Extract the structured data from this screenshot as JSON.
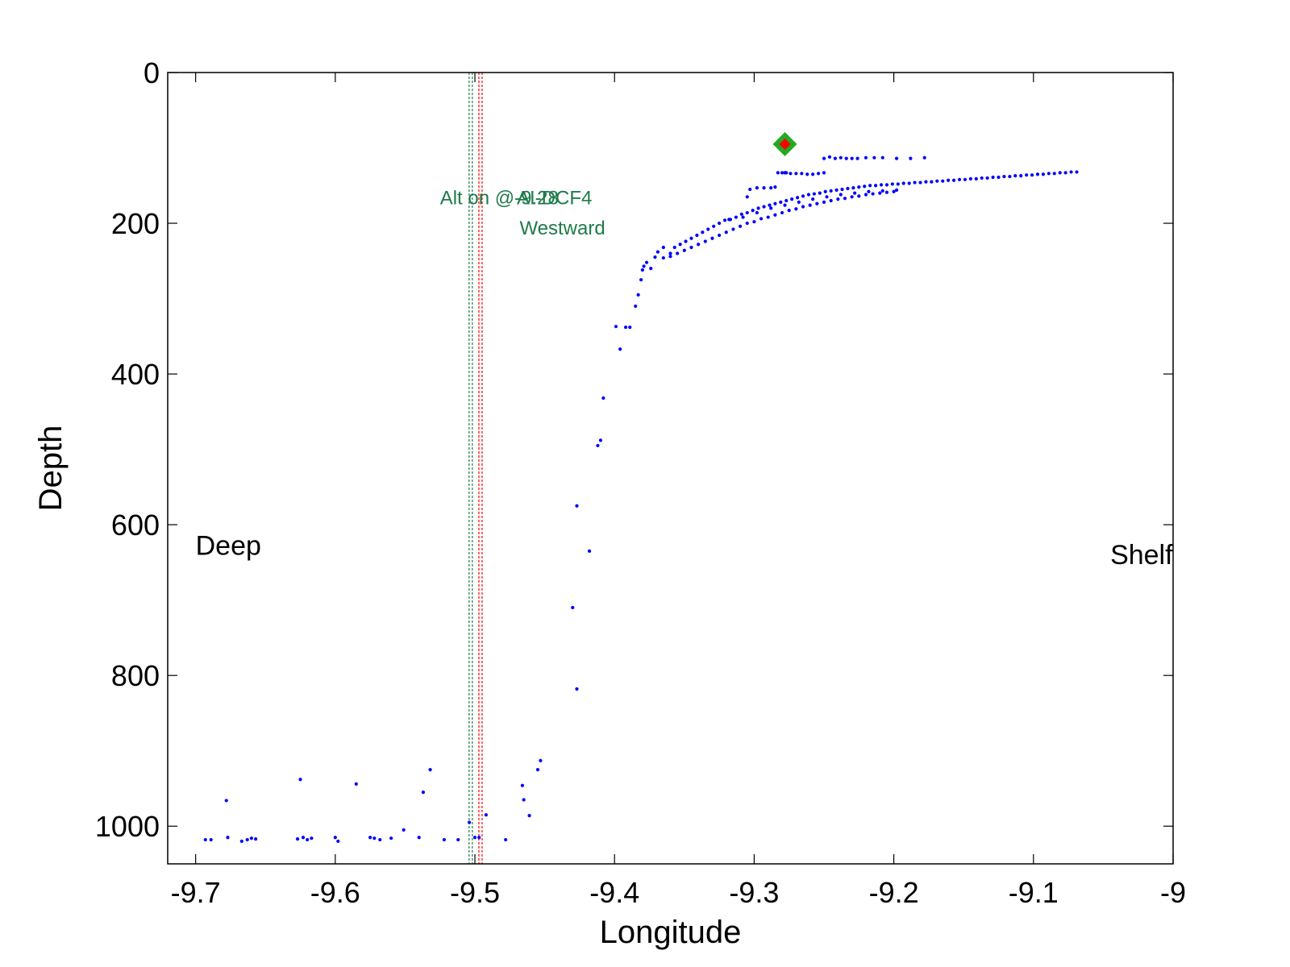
{
  "chart_data": {
    "type": "scatter",
    "xlabel": "Longitude",
    "ylabel": "Depth",
    "xlim": [
      -9.72,
      -9.0
    ],
    "ylim": [
      0,
      1050
    ],
    "y_reversed": true,
    "xticks": [
      -9.7,
      -9.6,
      -9.5,
      -9.4,
      -9.3,
      -9.2,
      -9.1,
      -9.0
    ],
    "xtick_labels": [
      "-9.7",
      "-9.6",
      "-9.5",
      "-9.4",
      "-9.3",
      "-9.2",
      "-9.1",
      "-9"
    ],
    "yticks": [
      0,
      200,
      400,
      600,
      800,
      1000
    ],
    "ytick_labels": [
      "0",
      "200",
      "400",
      "600",
      "800",
      "1000"
    ],
    "grid": false,
    "colors": {
      "points": "#0000ff",
      "line_green": "#1f7a4a",
      "line_red": "#ff0000",
      "marker_outer": "#22aa22",
      "marker_inner": "#ff0000",
      "annotation_green": "#1f7a4a"
    },
    "vertical_lines": [
      {
        "x": -9.503,
        "color": "#1f7a4a",
        "style": "dotted"
      },
      {
        "x": -9.496,
        "color": "#ff0000",
        "style": "dotted"
      }
    ],
    "highlight_marker": {
      "x": -9.278,
      "y": 95,
      "shape": "diamond"
    },
    "annotations": [
      {
        "text": "Deep",
        "x": -9.7,
        "y": 640,
        "color": "#000000"
      },
      {
        "text": "Shelf",
        "x": -9.045,
        "y": 652,
        "color": "#000000"
      },
      {
        "text": "Alt on @-9.28",
        "x": -9.525,
        "y": 175,
        "color": "#1f7a4a"
      },
      {
        "text": "AI-DCF4",
        "x": -9.47,
        "y": 175,
        "color": "#1f7a4a"
      },
      {
        "text": "Westward",
        "x": -9.468,
        "y": 215,
        "color": "#1f7a4a"
      }
    ],
    "series": [
      {
        "values": [
          [
            -9.693,
            1018
          ],
          [
            -9.689,
            1018
          ],
          [
            -9.678,
            966
          ],
          [
            -9.677,
            1015
          ],
          [
            -9.667,
            1020
          ],
          [
            -9.663,
            1018
          ],
          [
            -9.66,
            1016
          ],
          [
            -9.657,
            1017
          ],
          [
            -9.627,
            1017
          ],
          [
            -9.625,
            938
          ],
          [
            -9.623,
            1015
          ],
          [
            -9.62,
            1018
          ],
          [
            -9.617,
            1016
          ],
          [
            -9.6,
            1015
          ],
          [
            -9.598,
            1020
          ],
          [
            -9.585,
            944
          ],
          [
            -9.575,
            1015
          ],
          [
            -9.572,
            1016
          ],
          [
            -9.568,
            1018
          ],
          [
            -9.56,
            1016
          ],
          [
            -9.551,
            1005
          ],
          [
            -9.54,
            1015
          ],
          [
            -9.537,
            955
          ],
          [
            -9.532,
            925
          ],
          [
            -9.522,
            1018
          ],
          [
            -9.512,
            1018
          ],
          [
            -9.504,
            995
          ],
          [
            -9.5,
            1015
          ],
          [
            -9.497,
            1015
          ],
          [
            -9.492,
            985
          ],
          [
            -9.478,
            1018
          ],
          [
            -9.466,
            946
          ],
          [
            -9.465,
            965
          ],
          [
            -9.461,
            986
          ],
          [
            -9.455,
            925
          ],
          [
            -9.453,
            913
          ],
          [
            -9.43,
            710
          ],
          [
            -9.427,
            818
          ],
          [
            -9.427,
            575
          ],
          [
            -9.418,
            635
          ],
          [
            -9.412,
            495
          ],
          [
            -9.41,
            488
          ],
          [
            -9.408,
            432
          ],
          [
            -9.399,
            337
          ],
          [
            -9.396,
            367
          ],
          [
            -9.392,
            338
          ],
          [
            -9.389,
            338
          ],
          [
            -9.385,
            310
          ],
          [
            -9.383,
            295
          ],
          [
            -9.381,
            275
          ],
          [
            -9.38,
            262
          ],
          [
            -9.379,
            257
          ],
          [
            -9.377,
            252
          ],
          [
            -9.374,
            260
          ],
          [
            -9.371,
            245
          ],
          [
            -9.369,
            238
          ],
          [
            -9.365,
            232
          ],
          [
            -9.36,
            240
          ],
          [
            -9.357,
            232
          ],
          [
            -9.353,
            228
          ],
          [
            -9.349,
            224
          ],
          [
            -9.345,
            220
          ],
          [
            -9.341,
            216
          ],
          [
            -9.337,
            212
          ],
          [
            -9.333,
            208
          ],
          [
            -9.329,
            204
          ],
          [
            -9.325,
            200
          ],
          [
            -9.321,
            196
          ],
          [
            -9.317,
            195
          ],
          [
            -9.313,
            192
          ],
          [
            -9.309,
            188
          ],
          [
            -9.305,
            186
          ],
          [
            -9.301,
            183
          ],
          [
            -9.297,
            180
          ],
          [
            -9.293,
            178
          ],
          [
            -9.289,
            176
          ],
          [
            -9.285,
            174
          ],
          [
            -9.281,
            172
          ],
          [
            -9.277,
            170
          ],
          [
            -9.273,
            168
          ],
          [
            -9.269,
            166
          ],
          [
            -9.265,
            164
          ],
          [
            -9.261,
            162
          ],
          [
            -9.257,
            161
          ],
          [
            -9.253,
            160
          ],
          [
            -9.249,
            158
          ],
          [
            -9.245,
            157
          ],
          [
            -9.241,
            156
          ],
          [
            -9.237,
            155
          ],
          [
            -9.233,
            154
          ],
          [
            -9.229,
            153
          ],
          [
            -9.225,
            152
          ],
          [
            -9.221,
            151
          ],
          [
            -9.217,
            150
          ],
          [
            -9.213,
            150
          ],
          [
            -9.209,
            149
          ],
          [
            -9.205,
            149
          ],
          [
            -9.201,
            148
          ],
          [
            -9.197,
            148
          ],
          [
            -9.193,
            147
          ],
          [
            -9.189,
            147
          ],
          [
            -9.185,
            146
          ],
          [
            -9.181,
            146
          ],
          [
            -9.177,
            145
          ],
          [
            -9.173,
            145
          ],
          [
            -9.169,
            144
          ],
          [
            -9.165,
            144
          ],
          [
            -9.161,
            143
          ],
          [
            -9.157,
            143
          ],
          [
            -9.153,
            142
          ],
          [
            -9.149,
            142
          ],
          [
            -9.145,
            141
          ],
          [
            -9.141,
            141
          ],
          [
            -9.137,
            140
          ],
          [
            -9.133,
            140
          ],
          [
            -9.129,
            139
          ],
          [
            -9.125,
            139
          ],
          [
            -9.121,
            138
          ],
          [
            -9.117,
            138
          ],
          [
            -9.113,
            137
          ],
          [
            -9.109,
            137
          ],
          [
            -9.105,
            136
          ],
          [
            -9.101,
            136
          ],
          [
            -9.097,
            135
          ],
          [
            -9.093,
            135
          ],
          [
            -9.089,
            134
          ],
          [
            -9.085,
            134
          ],
          [
            -9.081,
            133
          ],
          [
            -9.077,
            133
          ],
          [
            -9.073,
            132
          ],
          [
            -9.069,
            132
          ],
          [
            -9.365,
            246
          ],
          [
            -9.36,
            244
          ],
          [
            -9.355,
            240
          ],
          [
            -9.35,
            236
          ],
          [
            -9.345,
            232
          ],
          [
            -9.34,
            228
          ],
          [
            -9.335,
            224
          ],
          [
            -9.33,
            220
          ],
          [
            -9.325,
            216
          ],
          [
            -9.32,
            212
          ],
          [
            -9.315,
            208
          ],
          [
            -9.31,
            204
          ],
          [
            -9.305,
            200
          ],
          [
            -9.3,
            198
          ],
          [
            -9.295,
            194
          ],
          [
            -9.29,
            192
          ],
          [
            -9.285,
            189
          ],
          [
            -9.28,
            186
          ],
          [
            -9.275,
            183
          ],
          [
            -9.27,
            181
          ],
          [
            -9.265,
            178
          ],
          [
            -9.26,
            176
          ],
          [
            -9.255,
            174
          ],
          [
            -9.25,
            172
          ],
          [
            -9.245,
            170
          ],
          [
            -9.24,
            168
          ],
          [
            -9.235,
            167
          ],
          [
            -9.23,
            165
          ],
          [
            -9.225,
            164
          ],
          [
            -9.22,
            162
          ],
          [
            -9.215,
            161
          ],
          [
            -9.21,
            160
          ],
          [
            -9.205,
            159
          ],
          [
            -9.2,
            158
          ],
          [
            -9.318,
            195
          ],
          [
            -9.308,
            192
          ],
          [
            -9.298,
            186
          ],
          [
            -9.288,
            180
          ],
          [
            -9.278,
            176
          ],
          [
            -9.268,
            172
          ],
          [
            -9.258,
            168
          ],
          [
            -9.248,
            165
          ],
          [
            -9.238,
            162
          ],
          [
            -9.228,
            160
          ],
          [
            -9.218,
            158
          ],
          [
            -9.208,
            157
          ],
          [
            -9.198,
            156
          ],
          [
            -9.305,
            165
          ],
          [
            -9.303,
            155
          ],
          [
            -9.298,
            153
          ],
          [
            -9.293,
            153
          ],
          [
            -9.288,
            153
          ],
          [
            -9.285,
            152
          ],
          [
            -9.283,
            133
          ],
          [
            -9.278,
            133
          ],
          [
            -9.274,
            134
          ],
          [
            -9.27,
            134
          ],
          [
            -9.266,
            134
          ],
          [
            -9.262,
            135
          ],
          [
            -9.258,
            135
          ],
          [
            -9.254,
            134
          ],
          [
            -9.25,
            133
          ],
          [
            -9.25,
            114
          ],
          [
            -9.246,
            112
          ],
          [
            -9.242,
            114
          ],
          [
            -9.238,
            113
          ],
          [
            -9.234,
            114
          ],
          [
            -9.23,
            114
          ],
          [
            -9.226,
            114
          ],
          [
            -9.22,
            113
          ],
          [
            -9.214,
            113
          ],
          [
            -9.208,
            113
          ],
          [
            -9.198,
            114
          ],
          [
            -9.188,
            114
          ],
          [
            -9.178,
            113
          ],
          [
            -9.277,
            133
          ],
          [
            -9.28,
            133
          ]
        ]
      }
    ]
  }
}
